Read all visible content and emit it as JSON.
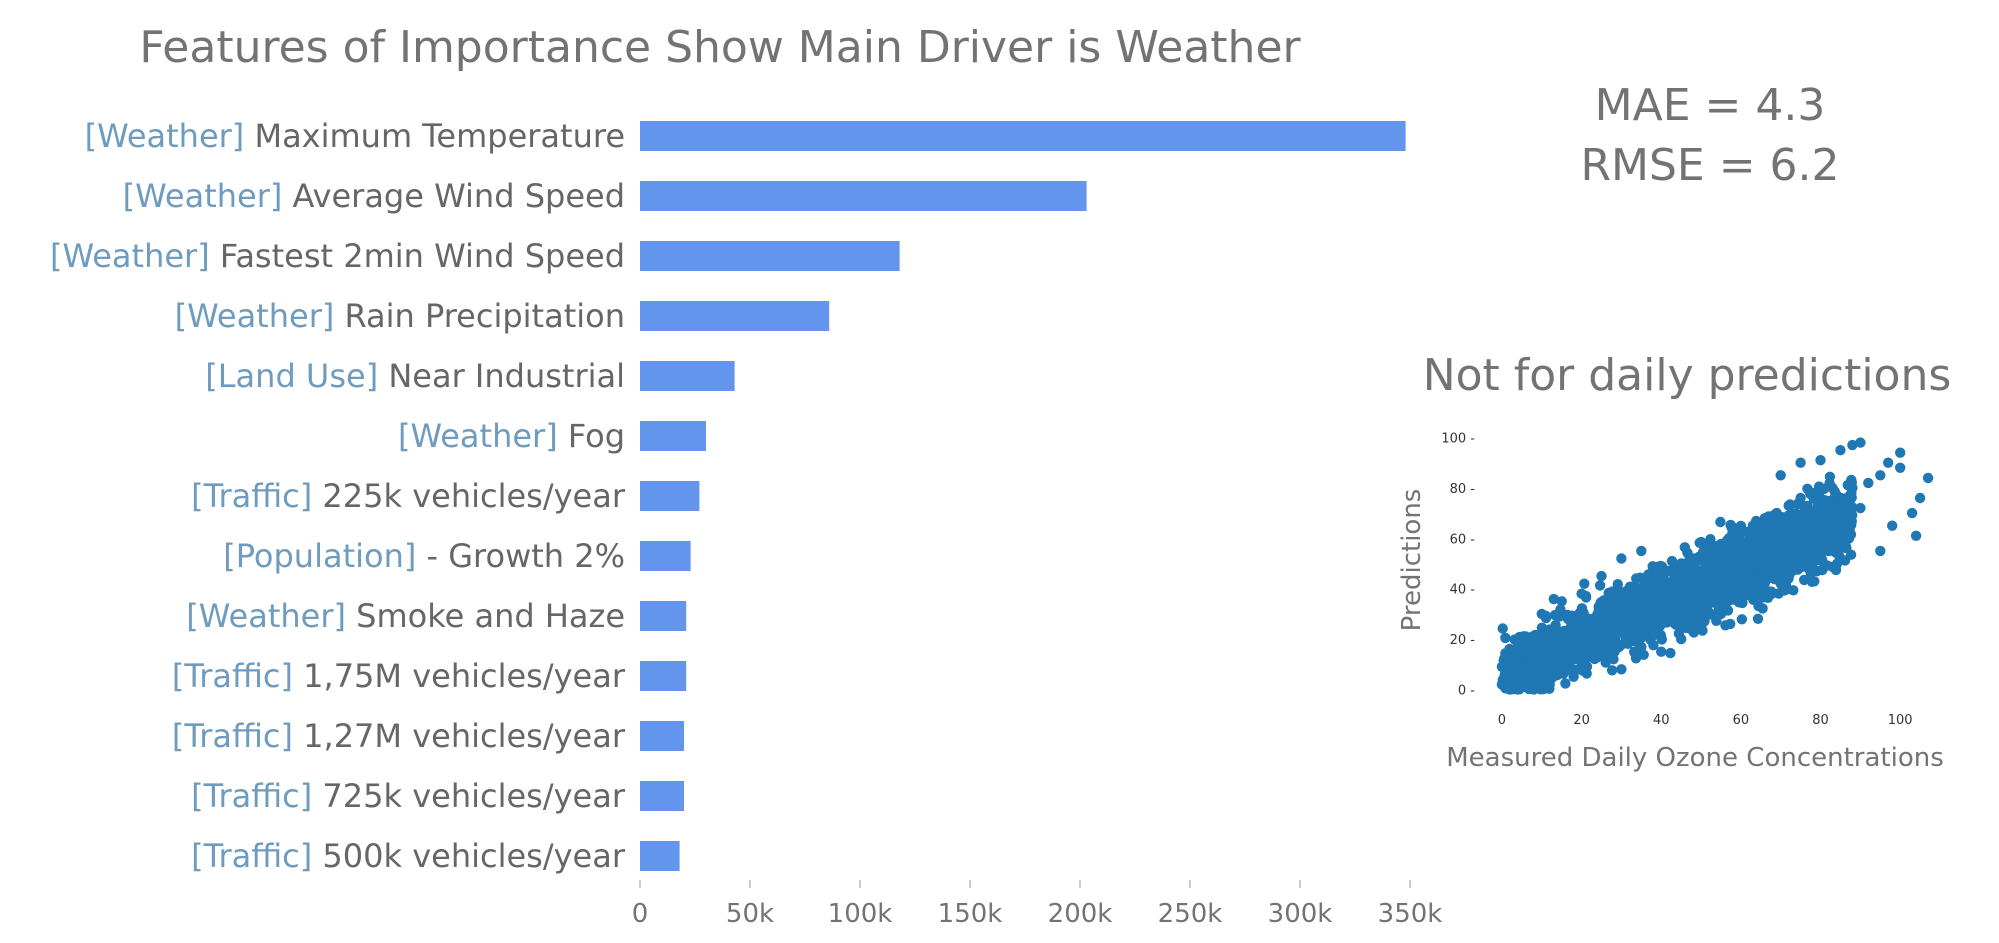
{
  "chart_data": [
    {
      "type": "bar",
      "orientation": "horizontal",
      "title": "Features of Importance Show Main Driver is Weather",
      "categories": [
        {
          "tag": "[Weather]",
          "label": "Maximum Temperature"
        },
        {
          "tag": "[Weather]",
          "label": "Average Wind Speed"
        },
        {
          "tag": "[Weather]",
          "label": "Fastest 2min Wind Speed"
        },
        {
          "tag": "[Weather]",
          "label": "Rain Precipitation"
        },
        {
          "tag": "[Land Use]",
          "label": "Near Industrial"
        },
        {
          "tag": "[Weather]",
          "label": "Fog"
        },
        {
          "tag": "[Traffic]",
          "label": "225k vehicles/year"
        },
        {
          "tag": "[Population]",
          "label": "- Growth 2%"
        },
        {
          "tag": "[Weather]",
          "label": "Smoke and Haze"
        },
        {
          "tag": "[Traffic]",
          "label": "1,75M vehicles/year"
        },
        {
          "tag": "[Traffic]",
          "label": "1,27M vehicles/year"
        },
        {
          "tag": "[Traffic]",
          "label": "725k vehicles/year"
        },
        {
          "tag": "[Traffic]",
          "label": "500k vehicles/year"
        }
      ],
      "values": [
        348000,
        203000,
        118000,
        86000,
        43000,
        30000,
        27000,
        23000,
        21000,
        21000,
        20000,
        20000,
        18000
      ],
      "xlim": [
        0,
        350000
      ],
      "xticks": [
        0,
        50000,
        100000,
        150000,
        200000,
        250000,
        300000,
        350000
      ],
      "xtick_labels": [
        "0",
        "50k",
        "100k",
        "150k",
        "200k",
        "250k",
        "300k",
        "350k"
      ],
      "colors": {
        "bar": "#6495ED",
        "tag": "#6E9BBE",
        "label": "#666666",
        "title": "#737373"
      }
    },
    {
      "type": "scatter",
      "title": "Not for daily predictions",
      "xlabel": "Measured Daily Ozone Concentrations",
      "ylabel": "Predictions",
      "xlim": [
        -3,
        110
      ],
      "ylim": [
        -3,
        103
      ],
      "xticks": [
        0,
        20,
        40,
        60,
        80,
        100
      ],
      "yticks": [
        0,
        20,
        40,
        60,
        80,
        100
      ],
      "trend": {
        "slope": 0.72,
        "intercept": 5,
        "noise_sd": 7
      },
      "points": [
        [
          0,
          2
        ],
        [
          1,
          5
        ],
        [
          2,
          8
        ],
        [
          1,
          1
        ],
        [
          3,
          4
        ],
        [
          0,
          9
        ],
        [
          2,
          0
        ],
        [
          4,
          7
        ],
        [
          5,
          3
        ],
        [
          3,
          12
        ],
        [
          6,
          6
        ],
        [
          7,
          10
        ],
        [
          8,
          4
        ],
        [
          5,
          15
        ],
        [
          9,
          8
        ],
        [
          10,
          13
        ],
        [
          11,
          6
        ],
        [
          12,
          18
        ],
        [
          13,
          10
        ],
        [
          14,
          14
        ],
        [
          15,
          20
        ],
        [
          16,
          9
        ],
        [
          17,
          16
        ],
        [
          18,
          24
        ],
        [
          19,
          12
        ],
        [
          20,
          19
        ],
        [
          21,
          27
        ],
        [
          22,
          15
        ],
        [
          23,
          22
        ],
        [
          24,
          30
        ],
        [
          25,
          17
        ],
        [
          26,
          25
        ],
        [
          27,
          33
        ],
        [
          28,
          20
        ],
        [
          29,
          28
        ],
        [
          30,
          36
        ],
        [
          31,
          22
        ],
        [
          32,
          30
        ],
        [
          33,
          39
        ],
        [
          34,
          25
        ],
        [
          35,
          33
        ],
        [
          36,
          42
        ],
        [
          37,
          28
        ],
        [
          38,
          35
        ],
        [
          39,
          45
        ],
        [
          40,
          30
        ],
        [
          41,
          38
        ],
        [
          42,
          47
        ],
        [
          43,
          33
        ],
        [
          44,
          40
        ],
        [
          45,
          50
        ],
        [
          46,
          35
        ],
        [
          47,
          43
        ],
        [
          48,
          52
        ],
        [
          49,
          38
        ],
        [
          50,
          45
        ],
        [
          51,
          55
        ],
        [
          52,
          40
        ],
        [
          53,
          48
        ],
        [
          54,
          57
        ],
        [
          55,
          42
        ],
        [
          56,
          50
        ],
        [
          57,
          60
        ],
        [
          58,
          45
        ],
        [
          59,
          53
        ],
        [
          60,
          62
        ],
        [
          61,
          47
        ],
        [
          62,
          55
        ],
        [
          63,
          65
        ],
        [
          64,
          50
        ],
        [
          65,
          58
        ],
        [
          66,
          68
        ],
        [
          67,
          52
        ],
        [
          68,
          60
        ],
        [
          69,
          70
        ],
        [
          70,
          55
        ],
        [
          71,
          63
        ],
        [
          72,
          73
        ],
        [
          73,
          58
        ],
        [
          74,
          66
        ],
        [
          75,
          76
        ],
        [
          76,
          60
        ],
        [
          77,
          68
        ],
        [
          78,
          78
        ],
        [
          79,
          63
        ],
        [
          80,
          71
        ],
        [
          81,
          65
        ],
        [
          82,
          74
        ],
        [
          83,
          80
        ],
        [
          84,
          70
        ],
        [
          85,
          62
        ],
        [
          86,
          75
        ],
        [
          87,
          68
        ],
        [
          88,
          80
        ],
        [
          90,
          72
        ],
        [
          92,
          82
        ],
        [
          95,
          85
        ],
        [
          97,
          90
        ],
        [
          100,
          88
        ],
        [
          105,
          76
        ],
        [
          107,
          84
        ],
        [
          100,
          94
        ],
        [
          85,
          95
        ],
        [
          90,
          98
        ],
        [
          98,
          65
        ],
        [
          103,
          70
        ],
        [
          104,
          61
        ],
        [
          95,
          55
        ],
        [
          70,
          85
        ],
        [
          75,
          90
        ],
        [
          80,
          91
        ],
        [
          88,
          97
        ],
        [
          40,
          15
        ],
        [
          45,
          20
        ],
        [
          30,
          52
        ],
        [
          35,
          55
        ],
        [
          25,
          45
        ],
        [
          20,
          38
        ],
        [
          15,
          35
        ],
        [
          10,
          30
        ],
        [
          50,
          25
        ],
        [
          60,
          35
        ],
        [
          55,
          30
        ],
        [
          65,
          40
        ],
        [
          70,
          42
        ],
        [
          78,
          47
        ],
        [
          82,
          55
        ],
        [
          18,
          5
        ],
        [
          12,
          2
        ],
        [
          8,
          0
        ],
        [
          6,
          1
        ],
        [
          4,
          0
        ],
        [
          2,
          3
        ],
        [
          30,
          8
        ],
        [
          28,
          12
        ]
      ],
      "colors": {
        "point": "#1F77B4",
        "tick_text": "#333333",
        "label": "#737373"
      }
    }
  ],
  "metrics": {
    "mae": "MAE = 4.3",
    "rmse": "RMSE = 6.2"
  }
}
